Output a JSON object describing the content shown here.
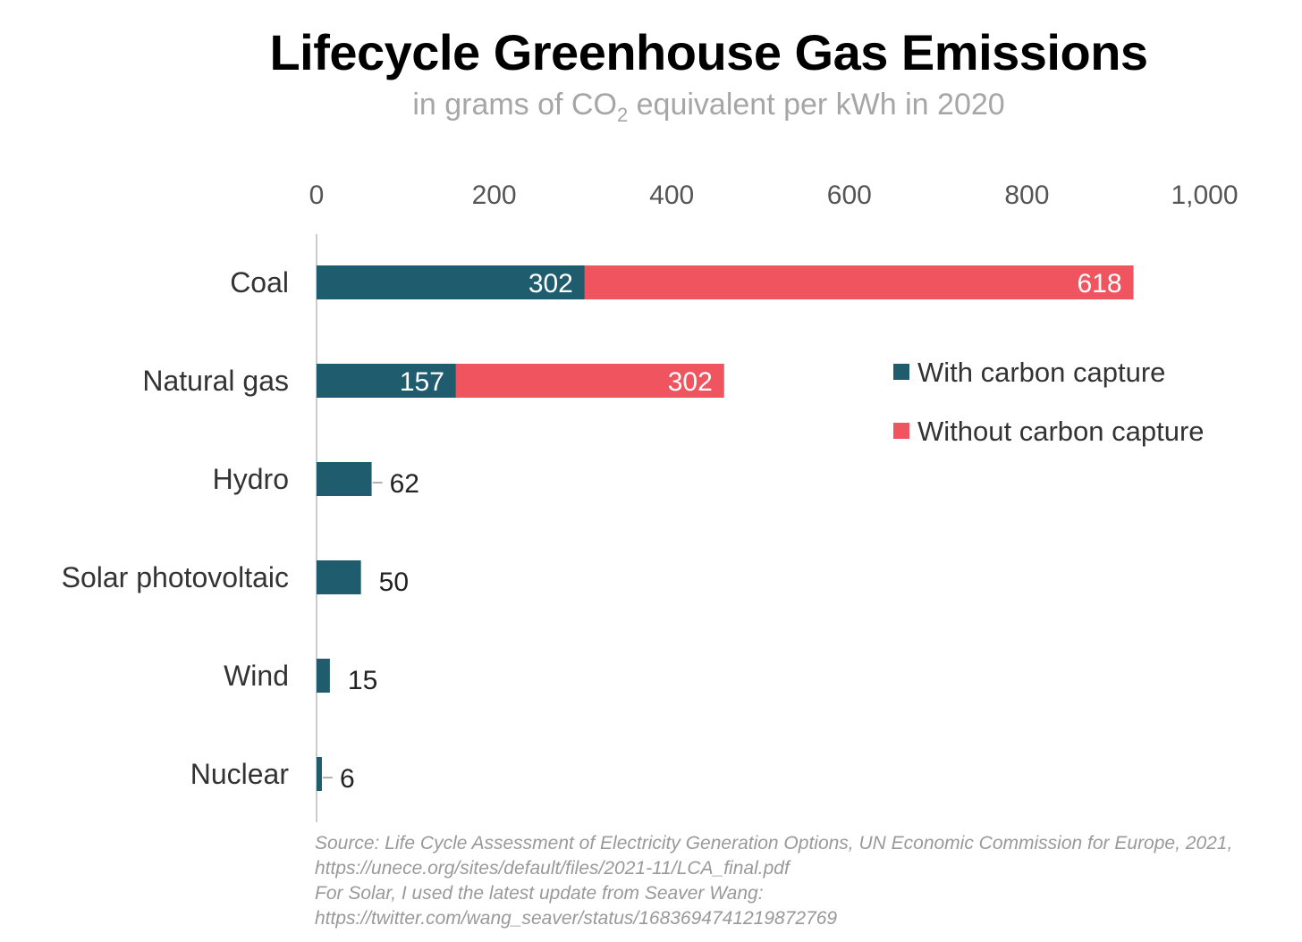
{
  "chart_data": {
    "type": "bar",
    "title": "Lifecycle Greenhouse Gas Emissions",
    "subtitle": {
      "before": "in grams of CO",
      "sub": "2",
      "after": " equivalent per kWh in 2020"
    },
    "categories": [
      "Coal",
      "Natural gas",
      "Hydro",
      "Solar photovoltaic",
      "Wind",
      "Nuclear"
    ],
    "series": [
      {
        "name": "With carbon capture",
        "color": "#1f5c6e",
        "values": [
          302,
          157,
          62,
          50,
          15,
          6
        ]
      },
      {
        "name": "Without carbon capture",
        "color": "#f0555f",
        "values": [
          618,
          302,
          null,
          null,
          null,
          null
        ]
      }
    ],
    "stacked": true,
    "xlim": [
      0,
      1000
    ],
    "x_ticks": [
      0,
      200,
      400,
      600,
      800,
      1000
    ],
    "x_tick_labels": [
      "0",
      "200",
      "400",
      "600",
      "800",
      "1,000"
    ],
    "x_axis_position": "top",
    "grid": false,
    "legend_position": "right",
    "annotations": [
      "Source: Life Cycle Assessment of Electricity Generation Options, UN Economic Commission for Europe, 2021,",
      "https://unece.org/sites/default/files/2021-11/LCA_final.pdf",
      "For Solar, I used the latest update from Seaver Wang:",
      "https://twitter.com/wang_seaver/status/1683694741219872769"
    ]
  }
}
